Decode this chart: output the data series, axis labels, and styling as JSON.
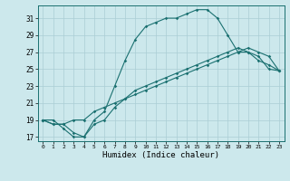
{
  "title": "",
  "xlabel": "Humidex (Indice chaleur)",
  "bg_color": "#cce8ec",
  "grid_color": "#aacdd4",
  "line_color": "#1a7070",
  "xlim": [
    -0.5,
    23.5
  ],
  "ylim": [
    16.5,
    32.5
  ],
  "yticks": [
    17,
    19,
    21,
    23,
    25,
    27,
    29,
    31
  ],
  "xticks": [
    0,
    1,
    2,
    3,
    4,
    5,
    6,
    7,
    8,
    9,
    10,
    11,
    12,
    13,
    14,
    15,
    16,
    17,
    18,
    19,
    20,
    21,
    22,
    23
  ],
  "line1_x": [
    0,
    1,
    2,
    3,
    4,
    5,
    6,
    7,
    8,
    9,
    10,
    11,
    12,
    13,
    14,
    15,
    16,
    17,
    18,
    19,
    20,
    21,
    22,
    23
  ],
  "line1_y": [
    19,
    19,
    18,
    17,
    17,
    19,
    20,
    23,
    26,
    28.5,
    30,
    30.5,
    31,
    31,
    31.5,
    32,
    32,
    31,
    29,
    27,
    27,
    26.5,
    25,
    24.8
  ],
  "line2_x": [
    0,
    1,
    2,
    3,
    4,
    5,
    6,
    7,
    8,
    9,
    10,
    11,
    12,
    13,
    14,
    15,
    16,
    17,
    18,
    19,
    20,
    21,
    22,
    23
  ],
  "line2_y": [
    19,
    18.5,
    18.5,
    19,
    19,
    20,
    20.5,
    21,
    21.5,
    22,
    22.5,
    23,
    23.5,
    24,
    24.5,
    25,
    25.5,
    26,
    26.5,
    27,
    27.5,
    27,
    26.5,
    24.8
  ],
  "line3_x": [
    0,
    1,
    2,
    3,
    4,
    5,
    6,
    7,
    8,
    9,
    10,
    11,
    12,
    13,
    14,
    15,
    16,
    17,
    18,
    19,
    20,
    21,
    22,
    23
  ],
  "line3_y": [
    19,
    18.5,
    18.5,
    17.5,
    17,
    18.5,
    19,
    20.5,
    21.5,
    22.5,
    23,
    23.5,
    24,
    24.5,
    25,
    25.5,
    26,
    26.5,
    27,
    27.5,
    27,
    26,
    25.5,
    24.8
  ]
}
